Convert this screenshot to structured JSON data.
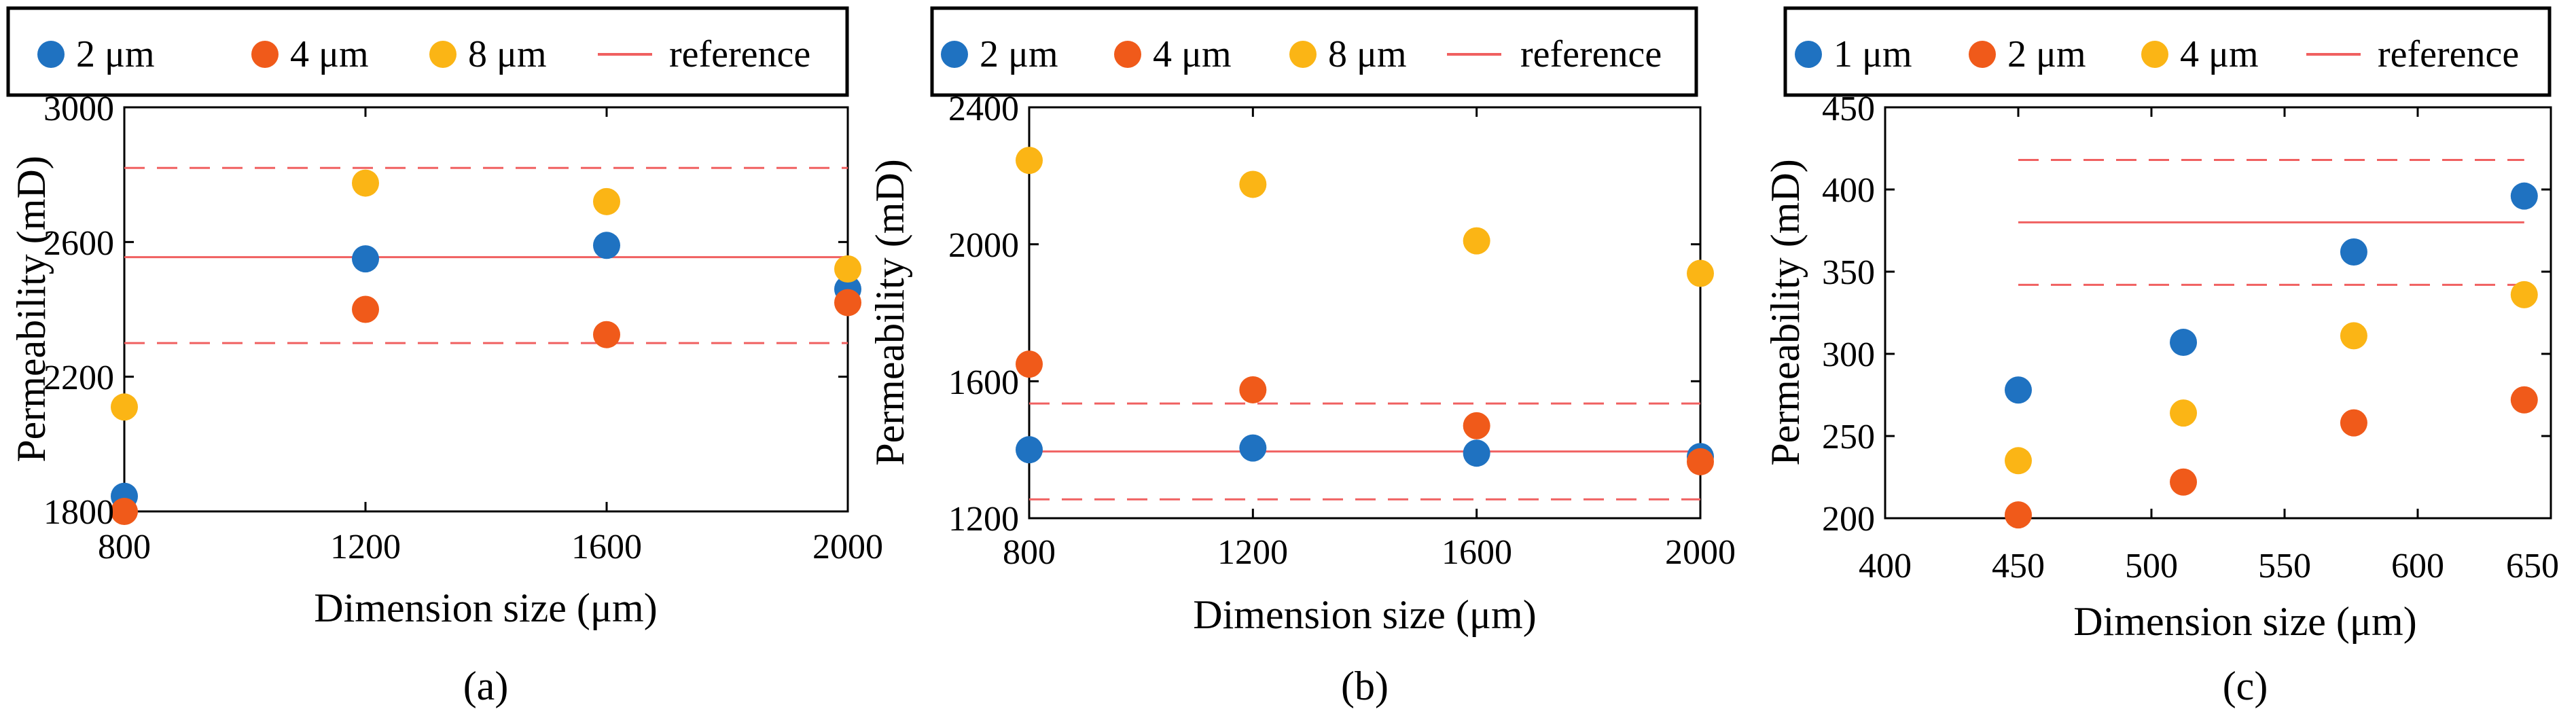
{
  "colors": {
    "series_blue": "#1f72c1",
    "series_red": "#f05a1a",
    "series_yellow": "#fbb515",
    "reference": "#f06060"
  },
  "chart_data": [
    {
      "type": "scatter",
      "caption": "(a)",
      "xlabel": "Dimension size (μm)",
      "ylabel": "Permeability (mD)",
      "xlim": [
        800,
        2000
      ],
      "ylim": [
        1800,
        3000
      ],
      "x_ticks": [
        800,
        1200,
        1600,
        2000
      ],
      "y_ticks": [
        1800,
        2200,
        2600,
        3000
      ],
      "grid": false,
      "legend_position": "top",
      "series": [
        {
          "name": "2 μm",
          "color": "#1f72c1",
          "x": [
            800,
            1200,
            1600,
            2000
          ],
          "y": [
            1845,
            2550,
            2590,
            2460
          ]
        },
        {
          "name": "4 μm",
          "color": "#f05a1a",
          "x": [
            800,
            1200,
            1600,
            2000
          ],
          "y": [
            1800,
            2400,
            2325,
            2420
          ]
        },
        {
          "name": "8 μm",
          "color": "#fbb515",
          "x": [
            800,
            1200,
            1600,
            2000
          ],
          "y": [
            2110,
            2775,
            2720,
            2520
          ]
        }
      ],
      "reference": {
        "name": "reference",
        "color": "#f06060",
        "value": 2555,
        "lower": 2300,
        "upper": 2820
      }
    },
    {
      "type": "scatter",
      "caption": "(b)",
      "xlabel": "Dimension size (μm)",
      "ylabel": "Permeability (mD)",
      "xlim": [
        800,
        2000
      ],
      "ylim": [
        1200,
        2400
      ],
      "x_ticks": [
        800,
        1200,
        1600,
        2000
      ],
      "y_ticks": [
        1200,
        1600,
        2000,
        2400
      ],
      "grid": false,
      "legend_position": "top",
      "series": [
        {
          "name": "2 μm",
          "color": "#1f72c1",
          "x": [
            800,
            1200,
            1600,
            2000
          ],
          "y": [
            1400,
            1405,
            1390,
            1380
          ]
        },
        {
          "name": "4 μm",
          "color": "#f05a1a",
          "x": [
            800,
            1200,
            1600,
            2000
          ],
          "y": [
            1650,
            1575,
            1470,
            1365
          ]
        },
        {
          "name": "8 μm",
          "color": "#fbb515",
          "x": [
            800,
            1200,
            1600,
            2000
          ],
          "y": [
            2245,
            2175,
            2010,
            1915
          ]
        }
      ],
      "reference": {
        "name": "reference",
        "color": "#f06060",
        "value": 1395,
        "lower": 1255,
        "upper": 1535
      }
    },
    {
      "type": "scatter",
      "caption": "(c)",
      "xlabel": "Dimension size (μm)",
      "ylabel": "Permeability (mD)",
      "xlim": [
        400,
        650
      ],
      "ylim": [
        200,
        450
      ],
      "x_ticks": [
        400,
        450,
        500,
        550,
        600,
        650
      ],
      "y_ticks": [
        200,
        250,
        300,
        350,
        400,
        450
      ],
      "grid": false,
      "legend_position": "top",
      "series": [
        {
          "name": "1 μm",
          "color": "#1f72c1",
          "x": [
            450,
            512,
            576,
            640
          ],
          "y": [
            278,
            307,
            362,
            396
          ]
        },
        {
          "name": "2 μm",
          "color": "#f05a1a",
          "x": [
            450,
            512,
            576,
            640
          ],
          "y": [
            202,
            222,
            258,
            272
          ]
        },
        {
          "name": "4 μm",
          "color": "#fbb515",
          "x": [
            450,
            512,
            576,
            640
          ],
          "y": [
            235,
            264,
            311,
            336
          ]
        }
      ],
      "reference": {
        "name": "reference",
        "color": "#f06060",
        "value": 380,
        "lower": 342,
        "upper": 418,
        "x_start": 450,
        "x_end": 640
      }
    }
  ]
}
